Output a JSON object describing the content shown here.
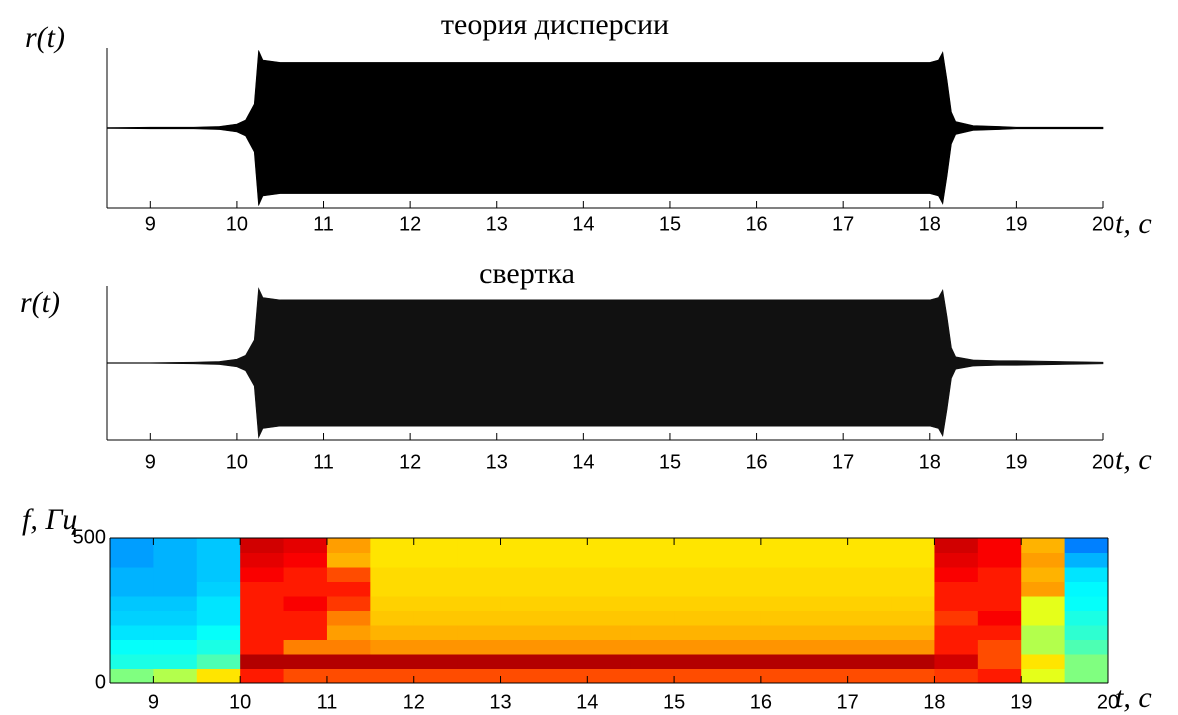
{
  "chart_data": [
    {
      "type": "envelope",
      "title": "теория дисперсии",
      "ylabel": "r(t)",
      "xlabel": "t, с",
      "x": [
        8.5,
        9.0,
        9.5,
        9.8,
        10.0,
        10.1,
        10.2,
        10.25,
        10.3,
        10.5,
        11,
        12,
        13,
        14,
        15,
        16,
        17,
        18,
        18.1,
        18.15,
        18.2,
        18.25,
        18.3,
        18.5,
        18.8,
        19,
        20
      ],
      "values": [
        0.005,
        0.01,
        0.01,
        0.02,
        0.05,
        0.1,
        0.3,
        0.97,
        0.85,
        0.82,
        0.82,
        0.82,
        0.82,
        0.82,
        0.82,
        0.82,
        0.82,
        0.82,
        0.85,
        0.95,
        0.6,
        0.2,
        0.08,
        0.03,
        0.02,
        0.01,
        0.01
      ],
      "color": "#000000",
      "xlim": [
        8.5,
        20
      ],
      "ylim": [
        -1,
        1
      ],
      "xticks": [
        9,
        10,
        11,
        12,
        13,
        14,
        15,
        16,
        17,
        18,
        19,
        20
      ]
    },
    {
      "type": "envelope",
      "title": "свертка",
      "ylabel": "r(t)",
      "xlabel": "t, с",
      "x": [
        8.5,
        9.0,
        9.5,
        9.8,
        10.0,
        10.1,
        10.2,
        10.25,
        10.3,
        10.5,
        11,
        12,
        13,
        14,
        15,
        16,
        17,
        18,
        18.1,
        18.15,
        18.2,
        18.25,
        18.3,
        18.5,
        18.8,
        19,
        20
      ],
      "values": [
        0.005,
        0.005,
        0.01,
        0.02,
        0.05,
        0.1,
        0.3,
        0.97,
        0.85,
        0.82,
        0.82,
        0.82,
        0.82,
        0.82,
        0.82,
        0.82,
        0.82,
        0.82,
        0.85,
        0.95,
        0.6,
        0.2,
        0.08,
        0.04,
        0.03,
        0.03,
        0.01
      ],
      "color": "#111111",
      "xlim": [
        8.5,
        20
      ],
      "ylim": [
        -1,
        1
      ],
      "xticks": [
        9,
        10,
        11,
        12,
        13,
        14,
        15,
        16,
        17,
        18,
        19,
        20
      ]
    },
    {
      "type": "heatmap",
      "ylabel": "f, Гц",
      "xlabel": "t, с",
      "colormap": "jet",
      "xbins": [
        8.5,
        9,
        9.5,
        10,
        10.5,
        11,
        11.5,
        12,
        12.5,
        13,
        13.5,
        14,
        14.5,
        15,
        15.5,
        16,
        16.5,
        17,
        17.5,
        18,
        18.5,
        19,
        19.5,
        20
      ],
      "ybins": [
        0,
        50,
        100,
        150,
        200,
        250,
        300,
        350,
        400,
        450,
        500
      ],
      "values": [
        [
          0.5,
          0.55,
          0.65,
          0.85,
          0.8,
          0.8,
          0.8,
          0.8,
          0.8,
          0.8,
          0.8,
          0.8,
          0.8,
          0.8,
          0.8,
          0.8,
          0.8,
          0.8,
          0.8,
          0.82,
          0.85,
          0.6,
          0.5
        ],
        [
          0.4,
          0.4,
          0.45,
          0.95,
          0.95,
          0.95,
          0.95,
          0.95,
          0.95,
          0.95,
          0.95,
          0.95,
          0.95,
          0.95,
          0.95,
          0.95,
          0.95,
          0.95,
          0.95,
          0.92,
          0.8,
          0.65,
          0.5
        ],
        [
          0.38,
          0.38,
          0.4,
          0.85,
          0.75,
          0.75,
          0.73,
          0.73,
          0.73,
          0.73,
          0.73,
          0.73,
          0.73,
          0.73,
          0.73,
          0.73,
          0.73,
          0.73,
          0.73,
          0.85,
          0.8,
          0.55,
          0.45
        ],
        [
          0.35,
          0.35,
          0.38,
          0.85,
          0.85,
          0.72,
          0.7,
          0.7,
          0.7,
          0.7,
          0.7,
          0.7,
          0.7,
          0.7,
          0.7,
          0.7,
          0.7,
          0.7,
          0.7,
          0.85,
          0.85,
          0.55,
          0.42
        ],
        [
          0.33,
          0.33,
          0.35,
          0.85,
          0.85,
          0.75,
          0.68,
          0.68,
          0.68,
          0.68,
          0.68,
          0.68,
          0.68,
          0.68,
          0.68,
          0.68,
          0.68,
          0.68,
          0.68,
          0.82,
          0.88,
          0.6,
          0.4
        ],
        [
          0.32,
          0.32,
          0.35,
          0.85,
          0.88,
          0.82,
          0.67,
          0.67,
          0.67,
          0.67,
          0.67,
          0.67,
          0.67,
          0.67,
          0.67,
          0.67,
          0.67,
          0.67,
          0.67,
          0.85,
          0.85,
          0.6,
          0.38
        ],
        [
          0.3,
          0.3,
          0.33,
          0.85,
          0.85,
          0.85,
          0.66,
          0.66,
          0.66,
          0.66,
          0.66,
          0.66,
          0.66,
          0.66,
          0.66,
          0.66,
          0.66,
          0.66,
          0.66,
          0.85,
          0.85,
          0.72,
          0.37
        ],
        [
          0.3,
          0.3,
          0.32,
          0.88,
          0.85,
          0.8,
          0.66,
          0.66,
          0.66,
          0.66,
          0.66,
          0.66,
          0.66,
          0.66,
          0.66,
          0.66,
          0.66,
          0.66,
          0.66,
          0.88,
          0.85,
          0.7,
          0.35
        ],
        [
          0.28,
          0.3,
          0.32,
          0.9,
          0.88,
          0.7,
          0.65,
          0.65,
          0.65,
          0.65,
          0.65,
          0.65,
          0.65,
          0.65,
          0.65,
          0.65,
          0.65,
          0.65,
          0.65,
          0.9,
          0.88,
          0.72,
          0.3
        ],
        [
          0.28,
          0.3,
          0.32,
          0.92,
          0.9,
          0.72,
          0.65,
          0.65,
          0.65,
          0.65,
          0.65,
          0.65,
          0.65,
          0.65,
          0.65,
          0.65,
          0.65,
          0.65,
          0.65,
          0.92,
          0.88,
          0.7,
          0.25
        ]
      ],
      "xlim": [
        8.5,
        20
      ],
      "ylim": [
        0,
        500
      ],
      "xticks": [
        9,
        10,
        11,
        12,
        13,
        14,
        15,
        16,
        17,
        18,
        19,
        20
      ],
      "yticks": [
        0,
        500
      ]
    }
  ]
}
